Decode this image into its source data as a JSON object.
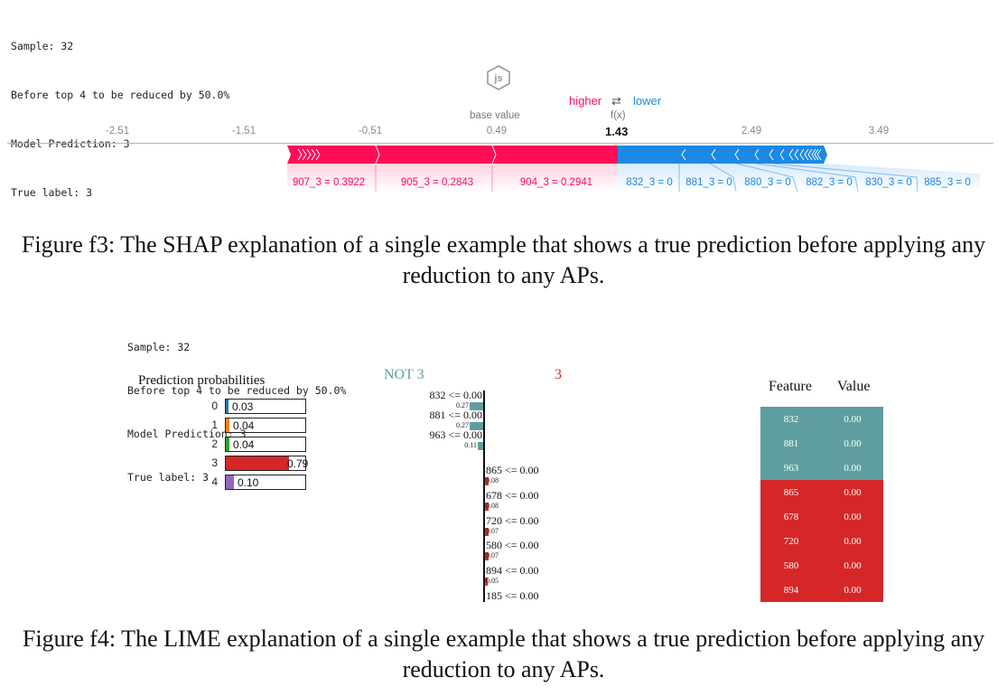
{
  "shap": {
    "meta_lines": [
      "Sample: 32",
      "Before top 4 to be reduced by 50.0%",
      "Model Prediction: 3",
      "True label: 3"
    ],
    "higher_label": "higher",
    "arrows": "⇄",
    "lower_label": "lower",
    "base_value_label": "base value",
    "fx_label": "f(x)",
    "fx_value": "1.43",
    "ticks": [
      "-2.51",
      "-1.51",
      "-0.51",
      "0.49",
      "2.49",
      "3.49"
    ],
    "pos_color": "#ff0d57",
    "neg_color": "#1e88e5",
    "features": [
      "907_3 = 0.3922",
      "905_3 = 0.2843",
      "904_3 = 0.2941",
      "832_3 = 0",
      "881_3 = 0",
      "880_3 = 0",
      "882_3 = 0",
      "830_3 = 0",
      "885_3 = 0"
    ]
  },
  "caption_f3": "Figure f3: The SHAP explanation of a single example that shows a true prediction before applying any reduction to any APs.",
  "lime": {
    "meta_lines": [
      "Sample: 32",
      "Before top 4 to be reduced by 50.0%",
      "Model Prediction: 3",
      "True label: 3"
    ],
    "probs_title": "Prediction probabilities",
    "probs": [
      {
        "cls": "0",
        "value": "0.03",
        "p": 0.03,
        "color": "#1f77b4"
      },
      {
        "cls": "1",
        "value": "0.04",
        "p": 0.04,
        "color": "#ff7f0e"
      },
      {
        "cls": "2",
        "value": "0.04",
        "p": 0.04,
        "color": "#2ca02c"
      },
      {
        "cls": "3",
        "value": "0.79",
        "p": 0.79,
        "color": "#d62728"
      },
      {
        "cls": "4",
        "value": "0.10",
        "p": 0.1,
        "color": "#9467bd"
      }
    ],
    "not_label": "NOT 3",
    "class_label": "3",
    "not_color": "#5f9ea0",
    "class_color": "#d62728",
    "weights": [
      {
        "label": "832 <= 0.00",
        "weight": "0.27",
        "side": "neg",
        "w": 0.27
      },
      {
        "label": "881 <= 0.00",
        "weight": "0.27",
        "side": "neg",
        "w": 0.27
      },
      {
        "label": "963 <= 0.00",
        "weight": "0.11",
        "side": "neg",
        "w": 0.11
      },
      {
        "label": "865 <= 0.00",
        "weight": "0.08",
        "side": "pos",
        "w": 0.08
      },
      {
        "label": "678 <= 0.00",
        "weight": "0.08",
        "side": "pos",
        "w": 0.08
      },
      {
        "label": "720 <= 0.00",
        "weight": "0.07",
        "side": "pos",
        "w": 0.07
      },
      {
        "label": "580 <= 0.00",
        "weight": "0.07",
        "side": "pos",
        "w": 0.07
      },
      {
        "label": "894 <= 0.00",
        "weight": "0.05",
        "side": "pos",
        "w": 0.05
      },
      {
        "label": "185 <= 0.00",
        "weight": "",
        "side": "pos",
        "w": 0
      }
    ],
    "table_headers": [
      "Feature",
      "Value"
    ],
    "table_rows": [
      {
        "feature": "832",
        "value": "0.00",
        "side": "neg"
      },
      {
        "feature": "881",
        "value": "0.00",
        "side": "neg"
      },
      {
        "feature": "963",
        "value": "0.00",
        "side": "neg"
      },
      {
        "feature": "865",
        "value": "0.00",
        "side": "pos"
      },
      {
        "feature": "678",
        "value": "0.00",
        "side": "pos"
      },
      {
        "feature": "720",
        "value": "0.00",
        "side": "pos"
      },
      {
        "feature": "580",
        "value": "0.00",
        "side": "pos"
      },
      {
        "feature": "894",
        "value": "0.00",
        "side": "pos"
      }
    ]
  },
  "caption_f4": "Figure f4: The LIME explanation of a single example that shows a true prediction before applying any reduction to any APs."
}
